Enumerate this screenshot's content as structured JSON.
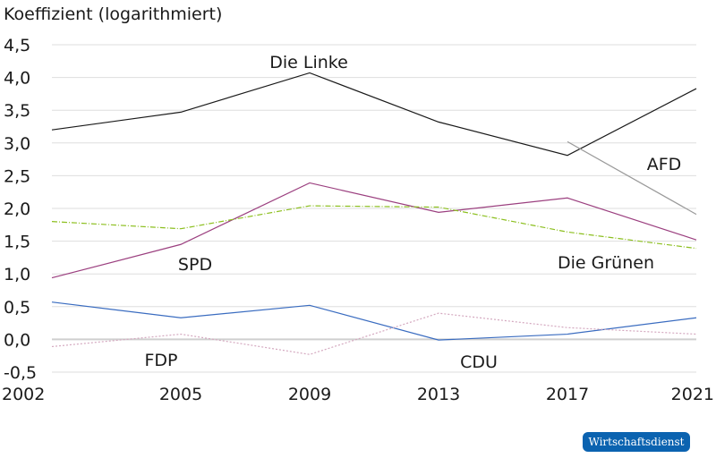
{
  "chart_data": {
    "type": "line",
    "title": "",
    "ylabel": "Koeffizient (logarithmiert)",
    "xlabel": "",
    "categories": [
      "2002",
      "2005",
      "2009",
      "2013",
      "2017",
      "2021"
    ],
    "ylim": [
      -0.5,
      4.5
    ],
    "yticks": [
      "4,5",
      "4,0",
      "3,5",
      "3,0",
      "2,5",
      "2,0",
      "1,5",
      "1,0",
      "0,5",
      "0,0",
      "-0,5"
    ],
    "grid": true,
    "series": [
      {
        "name": "Die Linke",
        "color": "#1a1a1a",
        "dash": "",
        "values": [
          3.2,
          3.47,
          4.07,
          3.32,
          2.81,
          3.83
        ]
      },
      {
        "name": "AFD",
        "color": "#9a9a9a",
        "dash": "",
        "values": [
          null,
          null,
          null,
          null,
          3.02,
          1.91
        ]
      },
      {
        "name": "SPD",
        "color": "#9b3f7f",
        "dash": "",
        "values": [
          0.94,
          1.45,
          2.39,
          1.94,
          2.16,
          1.52
        ]
      },
      {
        "name": "Die Grünen",
        "color": "#8cbf1f",
        "dash": "6 2 1 2",
        "values": [
          1.8,
          1.69,
          2.04,
          2.02,
          1.64,
          1.39
        ]
      },
      {
        "name": "FDP",
        "color": "#3a6cc0",
        "dash": "",
        "values": [
          0.57,
          0.33,
          0.52,
          -0.01,
          0.08,
          0.33
        ]
      },
      {
        "name": "CDU",
        "color": "#d4a8bf",
        "dash": "2 2",
        "values": [
          -0.11,
          0.08,
          -0.23,
          0.4,
          0.18,
          0.08
        ]
      }
    ]
  },
  "source_badge": "Wirtschaftsdienst"
}
